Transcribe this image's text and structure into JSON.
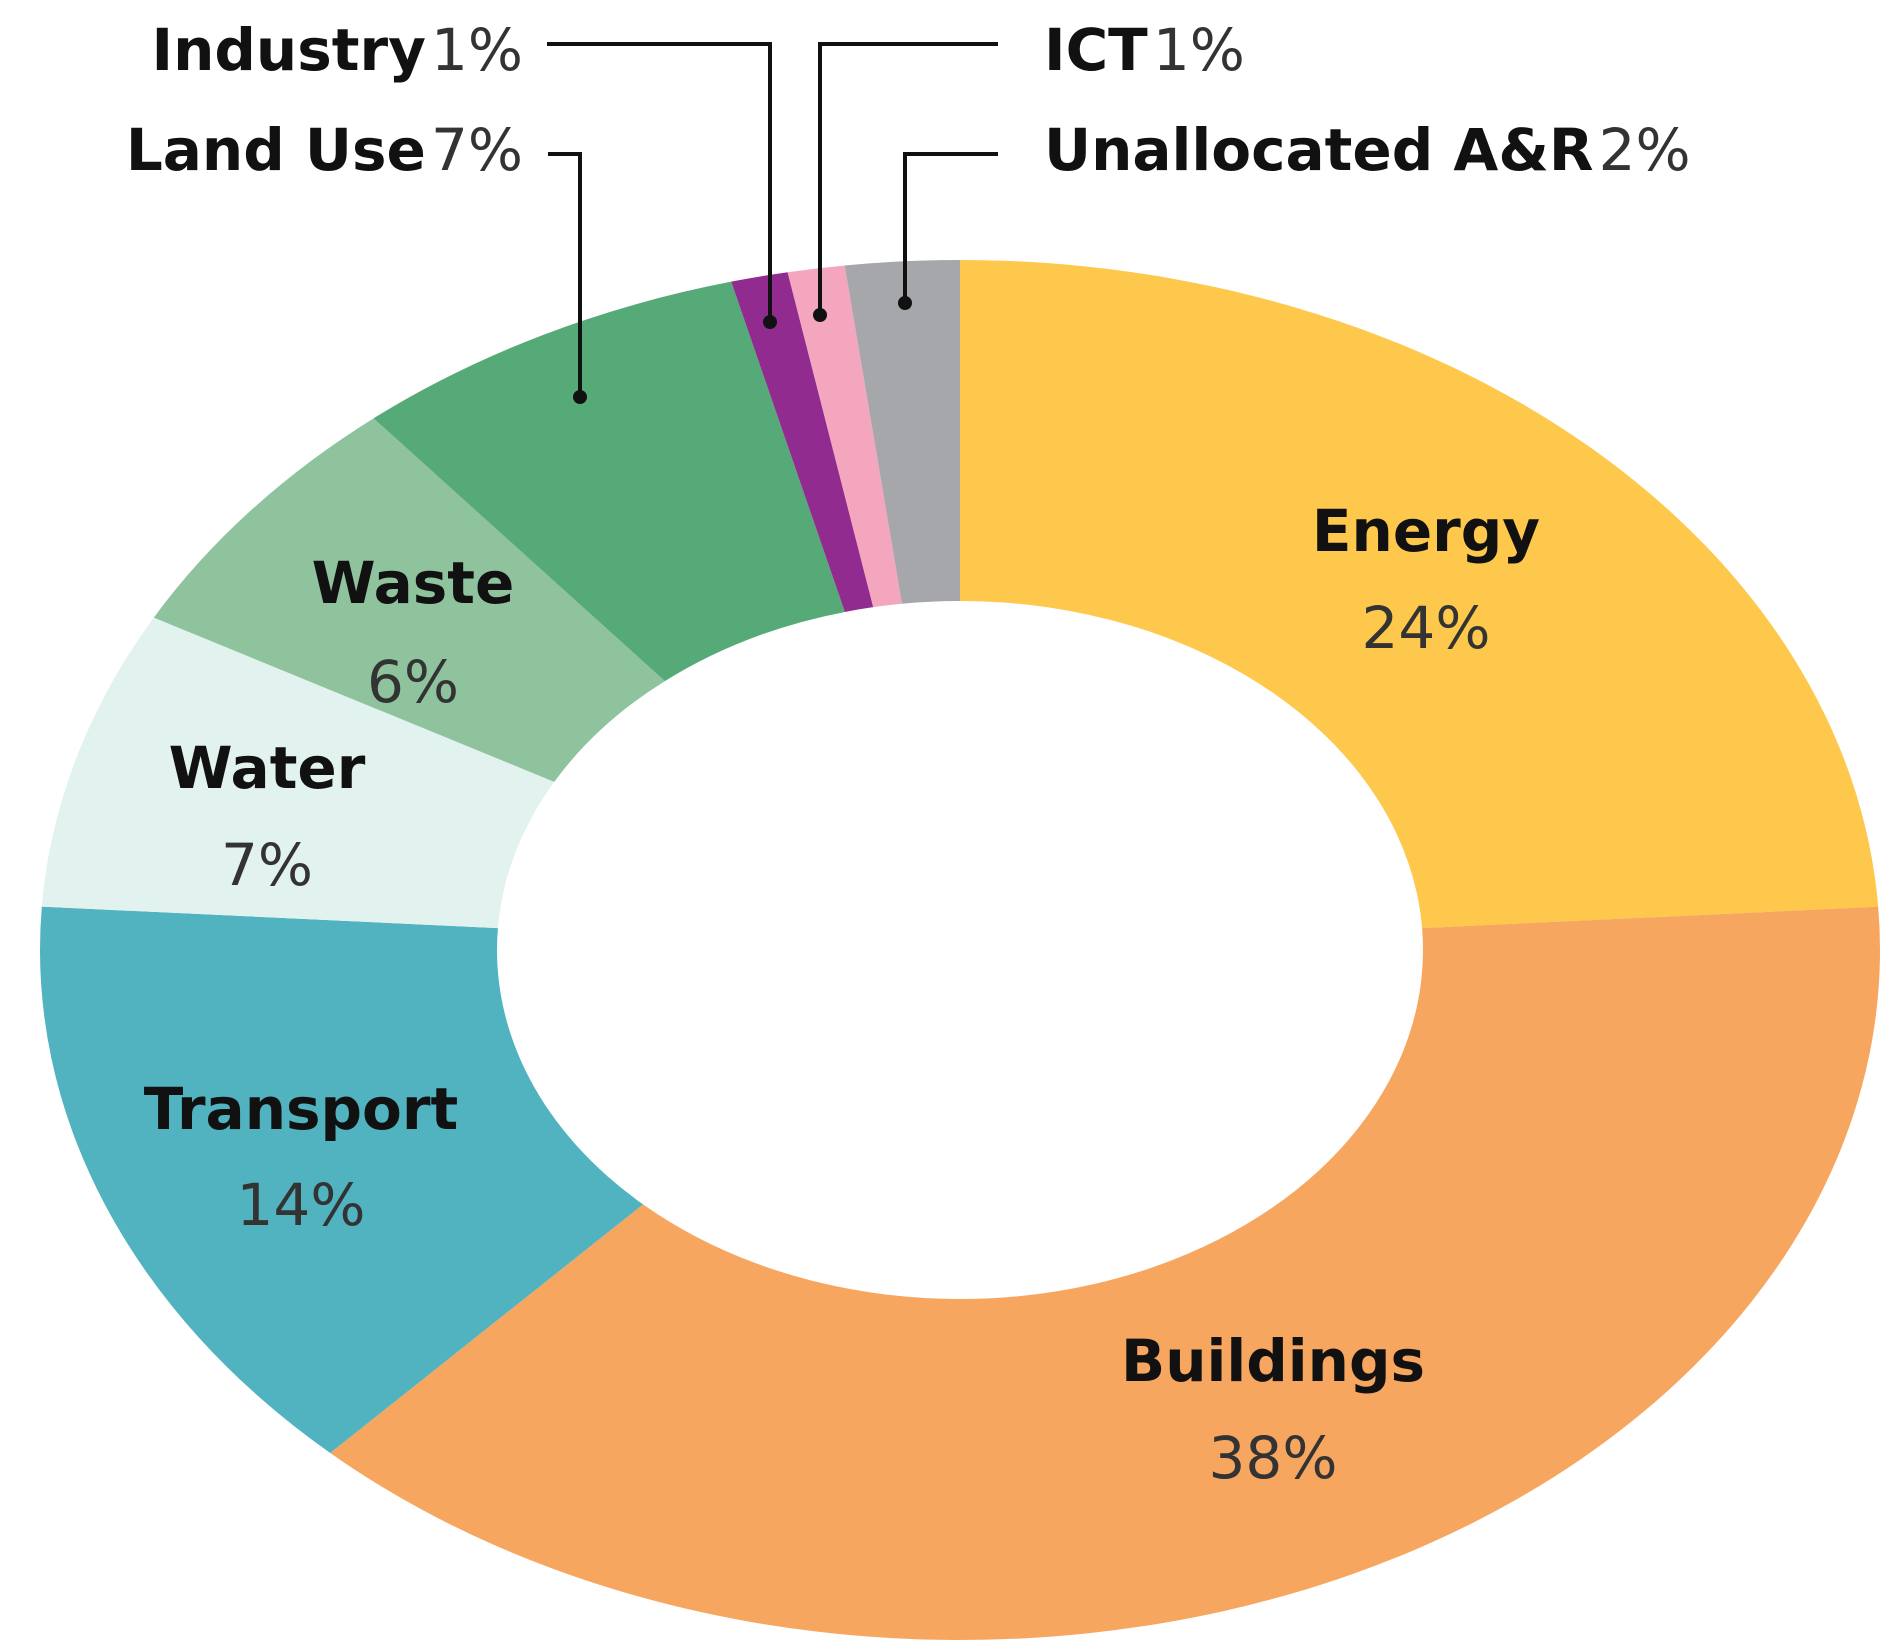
{
  "chart_data": {
    "type": "pie",
    "categories": [
      "Energy",
      "Buildings",
      "Transport",
      "Water",
      "Waste",
      "Land Use",
      "Industry",
      "ICT",
      "Unallocated A&R"
    ],
    "values": [
      24,
      38,
      14,
      7,
      6,
      7,
      1,
      1,
      2
    ],
    "value_labels": [
      "24%",
      "38%",
      "14%",
      "7%",
      "6%",
      "7%",
      "1%",
      "1%",
      "2%"
    ],
    "colors": [
      "#fdc84c",
      "#f7a660",
      "#50b3bf",
      "#e2f2ef",
      "#8fc39d",
      "#55aa78",
      "#922b8f",
      "#f3a6bd",
      "#a6a7ab"
    ]
  }
}
